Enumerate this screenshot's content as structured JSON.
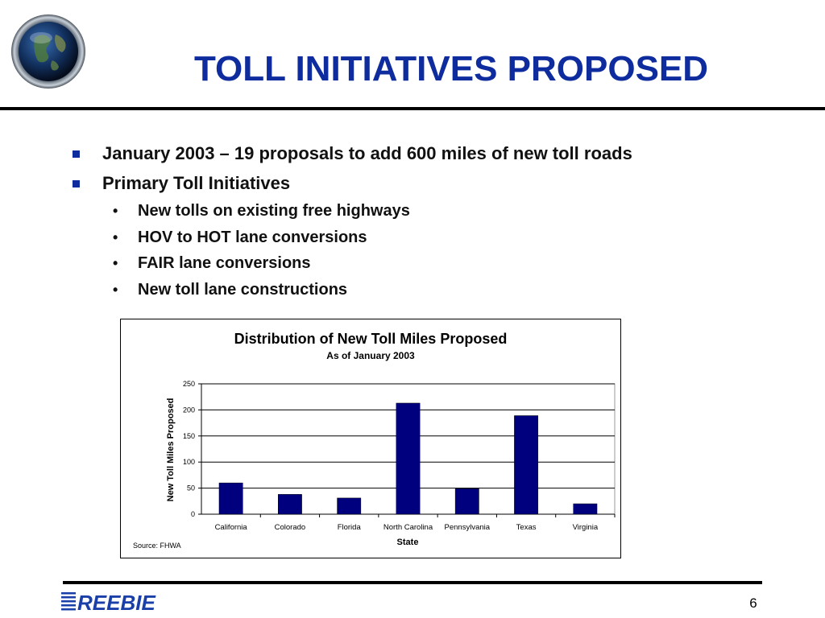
{
  "slide": {
    "title": "TOLL INITIATIVES PROPOSED",
    "page_number": "6",
    "logo_text": "REEBIE",
    "colors": {
      "title": "#0e2c9e",
      "bullet": "#0e2c9e",
      "bar": "#00007f",
      "logo": "#1a3fa8"
    }
  },
  "bullets": [
    {
      "text": "January 2003 – 19 proposals to add 600 miles of new toll roads",
      "subitems": []
    },
    {
      "text": "Primary Toll Initiatives",
      "subitems": [
        "New tolls on existing free highways",
        "HOV to HOT lane conversions",
        "FAIR lane conversions",
        "New toll lane constructions"
      ]
    }
  ],
  "chart_data": {
    "type": "bar",
    "title": "Distribution of New Toll Miles Proposed",
    "subtitle": "As of January 2003",
    "xlabel": "State",
    "ylabel": "New Toll Miles Proposed",
    "source": "Source: FHWA",
    "categories": [
      "California",
      "Colorado",
      "Florida",
      "North Carolina",
      "Pennsylvania",
      "Texas",
      "Virginia"
    ],
    "values": [
      60,
      38,
      31,
      213,
      49,
      189,
      20
    ],
    "ylim": [
      0,
      250
    ],
    "yticks": [
      "0",
      "50",
      "100",
      "150",
      "200",
      "250"
    ],
    "grid": true,
    "legend": "none"
  }
}
